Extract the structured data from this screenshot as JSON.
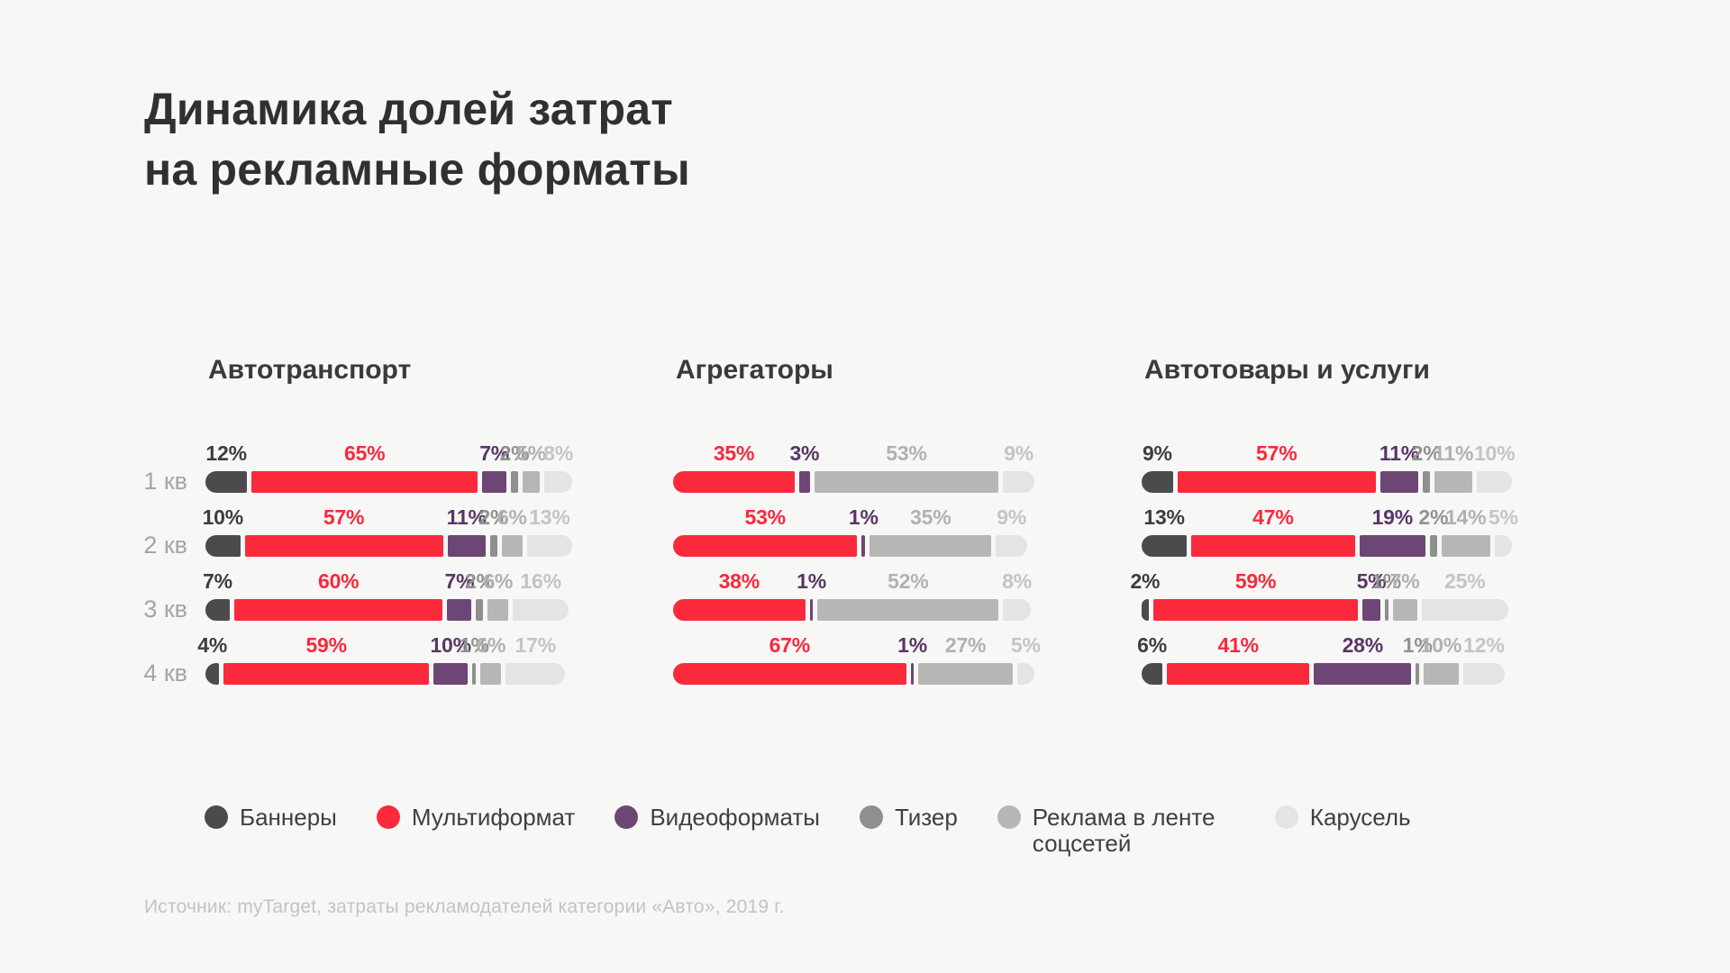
{
  "title": {
    "line1": "Динамика долей затрат",
    "line2": "на рекламные форматы"
  },
  "source": "Источник: myTarget, затраты рекламодателей категории «Авто», 2019 г.",
  "colors": {
    "background": "#f7f7f6",
    "title_text": "#303030",
    "heading_text": "#3a3a3a",
    "quarter_label": "#a5a5a5",
    "legend_text": "#3f3f3f",
    "source_text": "#c3c3c3"
  },
  "series_styles": [
    {
      "key": "banners",
      "name": "Баннеры",
      "color": "#4b4b4b",
      "label_color": "#3d3d3d",
      "label_weight": 700
    },
    {
      "key": "multiformat",
      "name": "Мультиформат",
      "color": "#fa2a3c",
      "label_color": "#f9293c",
      "label_weight": 700
    },
    {
      "key": "videoformats",
      "name": "Видеоформаты",
      "color": "#6d4675",
      "label_color": "#5a3566",
      "label_weight": 700
    },
    {
      "key": "teaser",
      "name": "Тизер",
      "color": "#8f8f8f",
      "label_color": "#919191",
      "label_weight": 700
    },
    {
      "key": "social-feed-ads",
      "name": "Реклама в ленте соцсетей",
      "color": "#b6b6b5",
      "label_color": "#b1b1b0",
      "label_weight": 600
    },
    {
      "key": "carousel",
      "name": "Карусель",
      "color": "#e4e4e3",
      "label_color": "#c4c4c3",
      "label_weight": 600
    }
  ],
  "chart_data": [
    {
      "type": "bar",
      "stacked": true,
      "orientation": "horizontal",
      "unit": "%",
      "xlim": [
        0,
        100
      ],
      "grid": false,
      "legend_position": "bottom",
      "title": "Автотранспорт",
      "categories": [
        "1 кв",
        "2 кв",
        "3 кв",
        "4 кв"
      ],
      "series": [
        {
          "name": "Баннеры",
          "values": [
            12,
            10,
            7,
            4
          ]
        },
        {
          "name": "Мультиформат",
          "values": [
            65,
            57,
            60,
            59
          ]
        },
        {
          "name": "Видеоформаты",
          "values": [
            7,
            11,
            7,
            10
          ]
        },
        {
          "name": "Тизер",
          "values": [
            2,
            2,
            2,
            1
          ]
        },
        {
          "name": "Реклама в ленте соцсетей",
          "values": [
            5,
            6,
            6,
            6
          ]
        },
        {
          "name": "Карусель",
          "values": [
            8,
            13,
            16,
            17
          ]
        }
      ]
    },
    {
      "type": "bar",
      "stacked": true,
      "orientation": "horizontal",
      "unit": "%",
      "xlim": [
        0,
        100
      ],
      "grid": false,
      "legend_position": "bottom",
      "title": "Агрегаторы",
      "categories": [
        "1 кв",
        "2 кв",
        "3 кв",
        "4 кв"
      ],
      "series": [
        {
          "name": "Баннеры",
          "values": [
            0,
            0,
            0,
            0
          ]
        },
        {
          "name": "Мультиформат",
          "values": [
            35,
            53,
            38,
            67
          ]
        },
        {
          "name": "Видеоформаты",
          "values": [
            3,
            1,
            1,
            1
          ]
        },
        {
          "name": "Тизер",
          "values": [
            0,
            0,
            0,
            0
          ]
        },
        {
          "name": "Реклама в ленте соцсетей",
          "values": [
            53,
            35,
            52,
            27
          ]
        },
        {
          "name": "Карусель",
          "values": [
            9,
            9,
            8,
            5
          ]
        }
      ]
    },
    {
      "type": "bar",
      "stacked": true,
      "orientation": "horizontal",
      "unit": "%",
      "xlim": [
        0,
        100
      ],
      "grid": false,
      "legend_position": "bottom",
      "title": "Автотовары и услуги",
      "categories": [
        "1 кв",
        "2 кв",
        "3 кв",
        "4 кв"
      ],
      "series": [
        {
          "name": "Баннеры",
          "values": [
            9,
            13,
            2,
            6
          ]
        },
        {
          "name": "Мультиформат",
          "values": [
            57,
            47,
            59,
            41
          ]
        },
        {
          "name": "Видеоформаты",
          "values": [
            11,
            19,
            5,
            28
          ]
        },
        {
          "name": "Тизер",
          "values": [
            2,
            2,
            1,
            1
          ]
        },
        {
          "name": "Реклама в ленте соцсетей",
          "values": [
            11,
            14,
            7,
            10
          ]
        },
        {
          "name": "Карусель",
          "values": [
            10,
            5,
            25,
            12
          ]
        }
      ]
    }
  ]
}
